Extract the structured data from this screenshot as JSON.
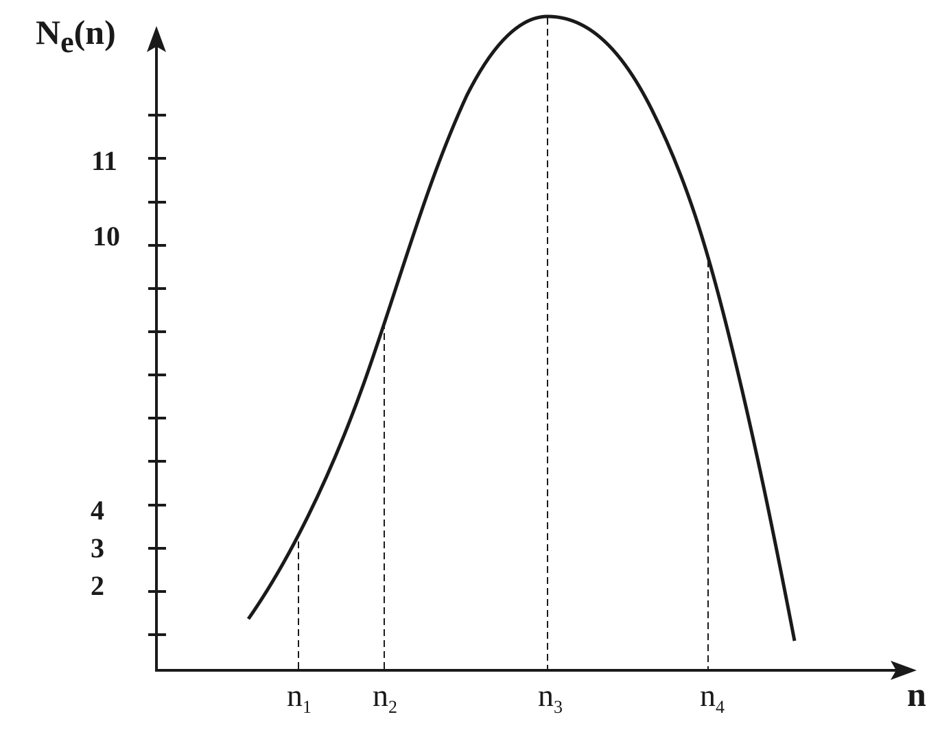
{
  "y_axis": {
    "label": "N",
    "label_sub": "e",
    "label_tail": "(n)",
    "tick_labels": [
      "11",
      "10",
      "4",
      "3",
      "2"
    ]
  },
  "x_axis": {
    "label": "n",
    "markers": [
      {
        "base": "n",
        "sub": "1"
      },
      {
        "base": "n",
        "sub": "2"
      },
      {
        "base": "n",
        "sub": "3"
      },
      {
        "base": "n",
        "sub": "4"
      }
    ]
  }
}
